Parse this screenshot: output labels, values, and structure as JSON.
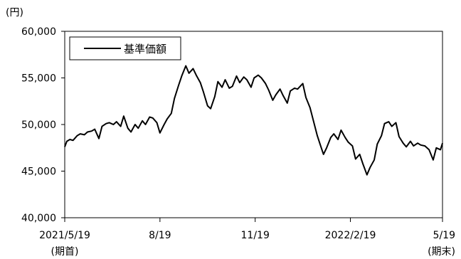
{
  "chart_data": {
    "type": "line",
    "y_unit": "(円)",
    "ylim": [
      40000,
      60000
    ],
    "y_ticks": [
      {
        "value": 40000,
        "label": "40,000"
      },
      {
        "value": 45000,
        "label": "45,000"
      },
      {
        "value": 50000,
        "label": "50,000"
      },
      {
        "value": 55000,
        "label": "55,000"
      },
      {
        "value": 60000,
        "label": "60,000"
      }
    ],
    "x_ticks": [
      {
        "date": "2021-05-19",
        "label": "2021/5/19",
        "sublabel": "(期首)"
      },
      {
        "date": "2021-08-19",
        "label": "8/19",
        "sublabel": ""
      },
      {
        "date": "2021-11-19",
        "label": "11/19",
        "sublabel": ""
      },
      {
        "date": "2022-02-19",
        "label": "2022/2/19",
        "sublabel": ""
      },
      {
        "date": "2022-05-19",
        "label": "5/19",
        "sublabel": "(期末)"
      }
    ],
    "xlim": [
      "2021-05-19",
      "2022-05-19"
    ],
    "legend": {
      "position": "top-left",
      "entries": [
        "基準価額"
      ]
    },
    "grid": false,
    "series": [
      {
        "name": "基準価額",
        "color": "#000000",
        "points": [
          [
            "2021-05-19",
            47600
          ],
          [
            "2021-05-21",
            48200
          ],
          [
            "2021-05-24",
            48400
          ],
          [
            "2021-05-27",
            48300
          ],
          [
            "2021-05-31",
            48800
          ],
          [
            "2021-06-03",
            49000
          ],
          [
            "2021-06-07",
            48900
          ],
          [
            "2021-06-10",
            49200
          ],
          [
            "2021-06-14",
            49300
          ],
          [
            "2021-06-17",
            49500
          ],
          [
            "2021-06-21",
            48500
          ],
          [
            "2021-06-24",
            49800
          ],
          [
            "2021-06-28",
            50100
          ],
          [
            "2021-07-01",
            50200
          ],
          [
            "2021-07-05",
            50000
          ],
          [
            "2021-07-08",
            50300
          ],
          [
            "2021-07-12",
            49800
          ],
          [
            "2021-07-15",
            50900
          ],
          [
            "2021-07-19",
            49600
          ],
          [
            "2021-07-22",
            49200
          ],
          [
            "2021-07-26",
            50000
          ],
          [
            "2021-07-29",
            49600
          ],
          [
            "2021-08-02",
            50400
          ],
          [
            "2021-08-05",
            50000
          ],
          [
            "2021-08-09",
            50800
          ],
          [
            "2021-08-12",
            50700
          ],
          [
            "2021-08-16",
            50200
          ],
          [
            "2021-08-19",
            49100
          ],
          [
            "2021-08-23",
            50000
          ],
          [
            "2021-08-26",
            50600
          ],
          [
            "2021-08-30",
            51200
          ],
          [
            "2021-09-02",
            52800
          ],
          [
            "2021-09-06",
            54200
          ],
          [
            "2021-09-09",
            55200
          ],
          [
            "2021-09-13",
            56300
          ],
          [
            "2021-09-16",
            55500
          ],
          [
            "2021-09-20",
            56000
          ],
          [
            "2021-09-23",
            55300
          ],
          [
            "2021-09-27",
            54500
          ],
          [
            "2021-09-30",
            53500
          ],
          [
            "2021-10-04",
            52000
          ],
          [
            "2021-10-07",
            51700
          ],
          [
            "2021-10-11",
            53000
          ],
          [
            "2021-10-14",
            54600
          ],
          [
            "2021-10-18",
            54000
          ],
          [
            "2021-10-21",
            54800
          ],
          [
            "2021-10-25",
            53900
          ],
          [
            "2021-10-28",
            54100
          ],
          [
            "2021-11-01",
            55200
          ],
          [
            "2021-11-04",
            54500
          ],
          [
            "2021-11-08",
            55100
          ],
          [
            "2021-11-11",
            54800
          ],
          [
            "2021-11-15",
            54000
          ],
          [
            "2021-11-18",
            55000
          ],
          [
            "2021-11-22",
            55300
          ],
          [
            "2021-11-25",
            55000
          ],
          [
            "2021-11-29",
            54400
          ],
          [
            "2021-12-02",
            53700
          ],
          [
            "2021-12-06",
            52600
          ],
          [
            "2021-12-09",
            53200
          ],
          [
            "2021-12-13",
            53800
          ],
          [
            "2021-12-16",
            53100
          ],
          [
            "2021-12-20",
            52300
          ],
          [
            "2021-12-23",
            53600
          ],
          [
            "2021-12-27",
            53900
          ],
          [
            "2021-12-30",
            53800
          ],
          [
            "2022-01-04",
            54400
          ],
          [
            "2022-01-07",
            52900
          ],
          [
            "2022-01-11",
            51800
          ],
          [
            "2022-01-14",
            50500
          ],
          [
            "2022-01-18",
            48800
          ],
          [
            "2022-01-21",
            47800
          ],
          [
            "2022-01-24",
            46800
          ],
          [
            "2022-01-27",
            47500
          ],
          [
            "2022-01-31",
            48600
          ],
          [
            "2022-02-03",
            49000
          ],
          [
            "2022-02-07",
            48400
          ],
          [
            "2022-02-10",
            49400
          ],
          [
            "2022-02-14",
            48600
          ],
          [
            "2022-02-17",
            48100
          ],
          [
            "2022-02-21",
            47700
          ],
          [
            "2022-02-24",
            46300
          ],
          [
            "2022-02-28",
            46800
          ],
          [
            "2022-03-03",
            45800
          ],
          [
            "2022-03-07",
            44600
          ],
          [
            "2022-03-10",
            45400
          ],
          [
            "2022-03-14",
            46200
          ],
          [
            "2022-03-17",
            47900
          ],
          [
            "2022-03-21",
            48800
          ],
          [
            "2022-03-24",
            50100
          ],
          [
            "2022-03-28",
            50300
          ],
          [
            "2022-03-31",
            49800
          ],
          [
            "2022-04-04",
            50200
          ],
          [
            "2022-04-07",
            48700
          ],
          [
            "2022-04-11",
            48000
          ],
          [
            "2022-04-14",
            47600
          ],
          [
            "2022-04-18",
            48200
          ],
          [
            "2022-04-21",
            47700
          ],
          [
            "2022-04-25",
            48000
          ],
          [
            "2022-04-28",
            47800
          ],
          [
            "2022-05-02",
            47700
          ],
          [
            "2022-05-06",
            47300
          ],
          [
            "2022-05-10",
            46200
          ],
          [
            "2022-05-13",
            47500
          ],
          [
            "2022-05-17",
            47300
          ],
          [
            "2022-05-19",
            48000
          ]
        ]
      }
    ]
  }
}
